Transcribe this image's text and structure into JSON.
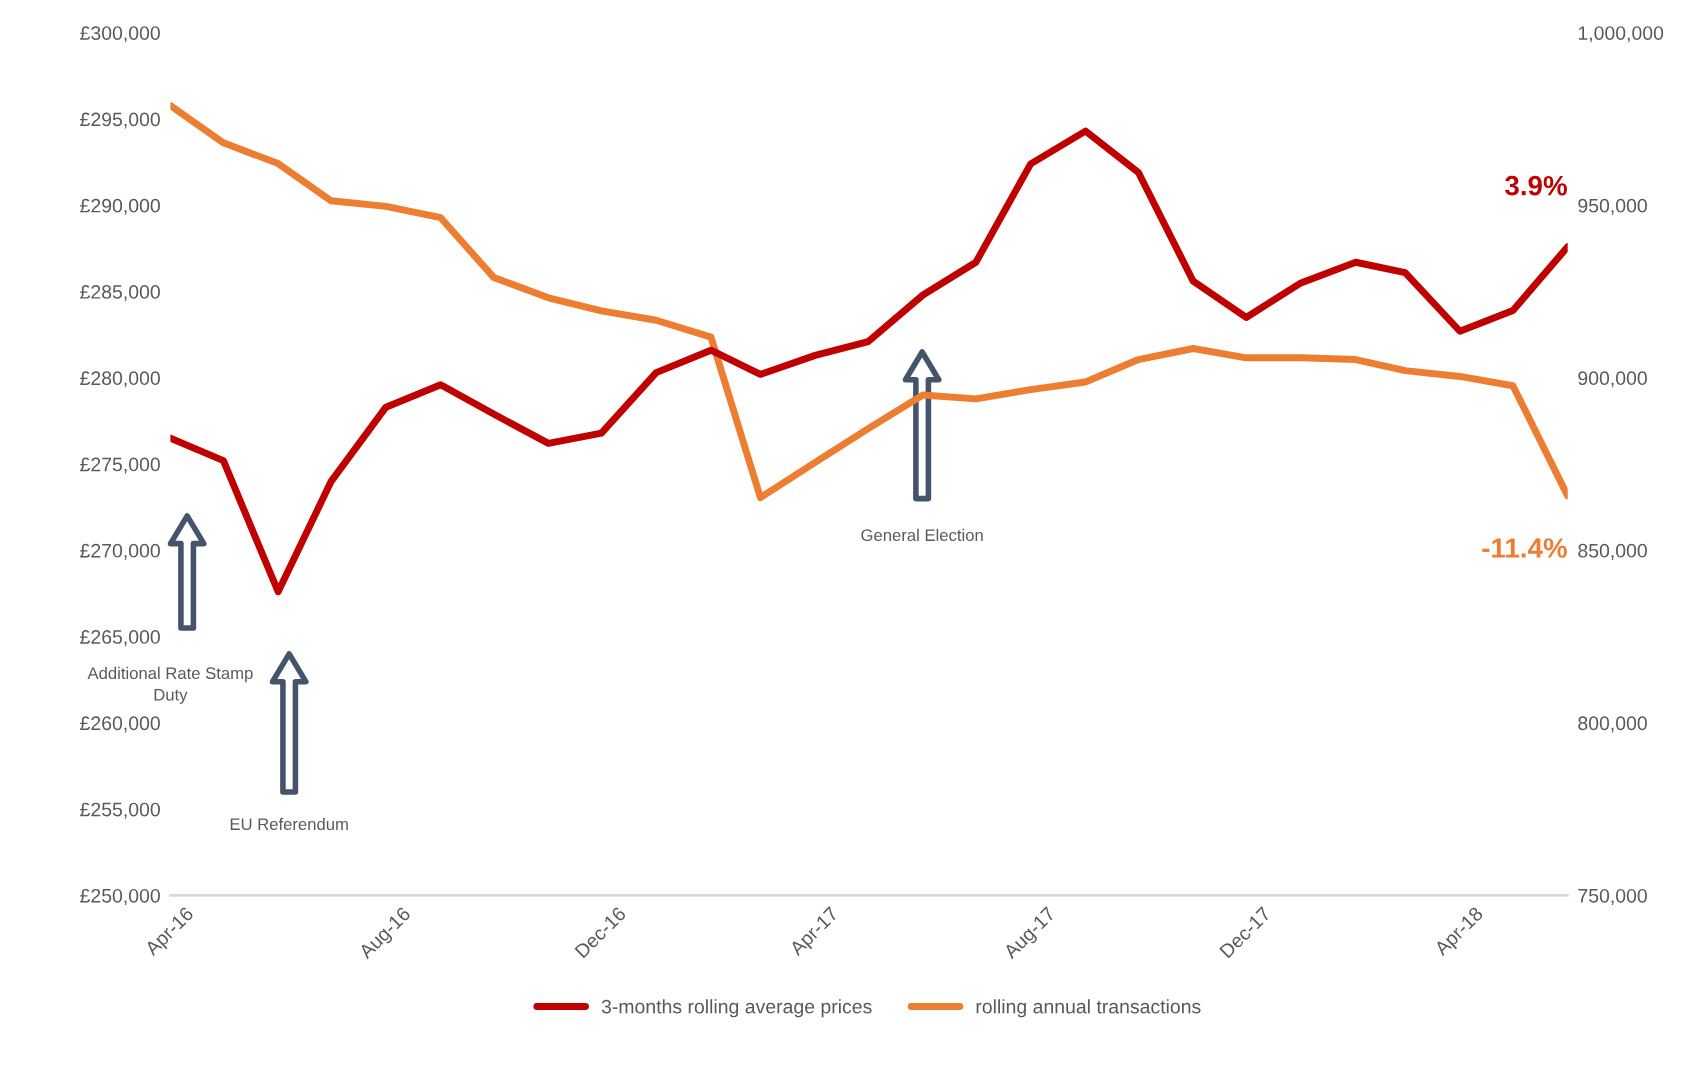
{
  "chart_data": {
    "type": "line",
    "x": [
      "2016-04",
      "2016-05",
      "2016-06",
      "2016-07",
      "2016-08",
      "2016-09",
      "2016-10",
      "2016-11",
      "2016-12",
      "2017-01",
      "2017-02",
      "2017-03",
      "2017-04",
      "2017-05",
      "2017-06",
      "2017-07",
      "2017-08",
      "2017-09",
      "2017-10",
      "2017-11",
      "2017-12",
      "2018-01",
      "2018-02",
      "2018-03",
      "2018-04",
      "2018-05",
      "2018-06"
    ],
    "series": [
      {
        "name": "3-months rolling average prices",
        "color": "#c00000",
        "values": [
          276500,
          275200,
          267600,
          274000,
          278300,
          279600,
          277900,
          276200,
          276800,
          280300,
          281600,
          280200,
          281300,
          282100,
          284800,
          286700,
          292400,
          294300,
          291900,
          285600,
          283500,
          285500,
          286700,
          286100,
          282700,
          283900,
          287600
        ]
      },
      {
        "name": "rolling annual transactions",
        "color": "#ed7d31",
        "axis": "y2",
        "values": [
          978900,
          968100,
          962100,
          951300,
          949700,
          946400,
          929100,
          923200,
          919400,
          916700,
          911800,
          865300,
          875500,
          885300,
          895000,
          893900,
          896600,
          898800,
          905300,
          908500,
          905800,
          905800,
          905300,
          902100,
          900400,
          897700,
          865800
        ]
      }
    ],
    "xlim": [
      "2016-04",
      "2018-06"
    ],
    "xticks": [
      {
        "value": "2016-04",
        "label": "Apr-16"
      },
      {
        "value": "2016-08",
        "label": "Aug-16"
      },
      {
        "value": "2016-12",
        "label": "Dec-16"
      },
      {
        "value": "2017-04",
        "label": "Apr-17"
      },
      {
        "value": "2017-08",
        "label": "Aug-17"
      },
      {
        "value": "2017-12",
        "label": "Dec-17"
      },
      {
        "value": "2018-04",
        "label": "Apr-18"
      }
    ],
    "ylim": [
      250000,
      300000
    ],
    "yticks": [
      {
        "value": 250000,
        "label": "£250,000"
      },
      {
        "value": 255000,
        "label": "£255,000"
      },
      {
        "value": 260000,
        "label": "£260,000"
      },
      {
        "value": 265000,
        "label": "£265,000"
      },
      {
        "value": 270000,
        "label": "£270,000"
      },
      {
        "value": 275000,
        "label": "£275,000"
      },
      {
        "value": 280000,
        "label": "£280,000"
      },
      {
        "value": 285000,
        "label": "£285,000"
      },
      {
        "value": 290000,
        "label": "£290,000"
      },
      {
        "value": 295000,
        "label": "£295,000"
      },
      {
        "value": 300000,
        "label": "£300,000"
      }
    ],
    "y2lim": [
      750000,
      1000000
    ],
    "y2ticks": [
      {
        "value": 750000,
        "label": "750,000"
      },
      {
        "value": 800000,
        "label": "800,000"
      },
      {
        "value": 850000,
        "label": "850,000"
      },
      {
        "value": 900000,
        "label": "900,000"
      },
      {
        "value": 950000,
        "label": "950,000"
      },
      {
        "value": 1000000,
        "label": "1,000,000"
      }
    ],
    "annotations": [
      "Additional Rate Stamp Duty",
      "EU Referendum",
      "General Election",
      "3.9%",
      "-11.4%"
    ],
    "grid": false,
    "legend": "bottom",
    "marker": "none",
    "line_style": "solid"
  }
}
